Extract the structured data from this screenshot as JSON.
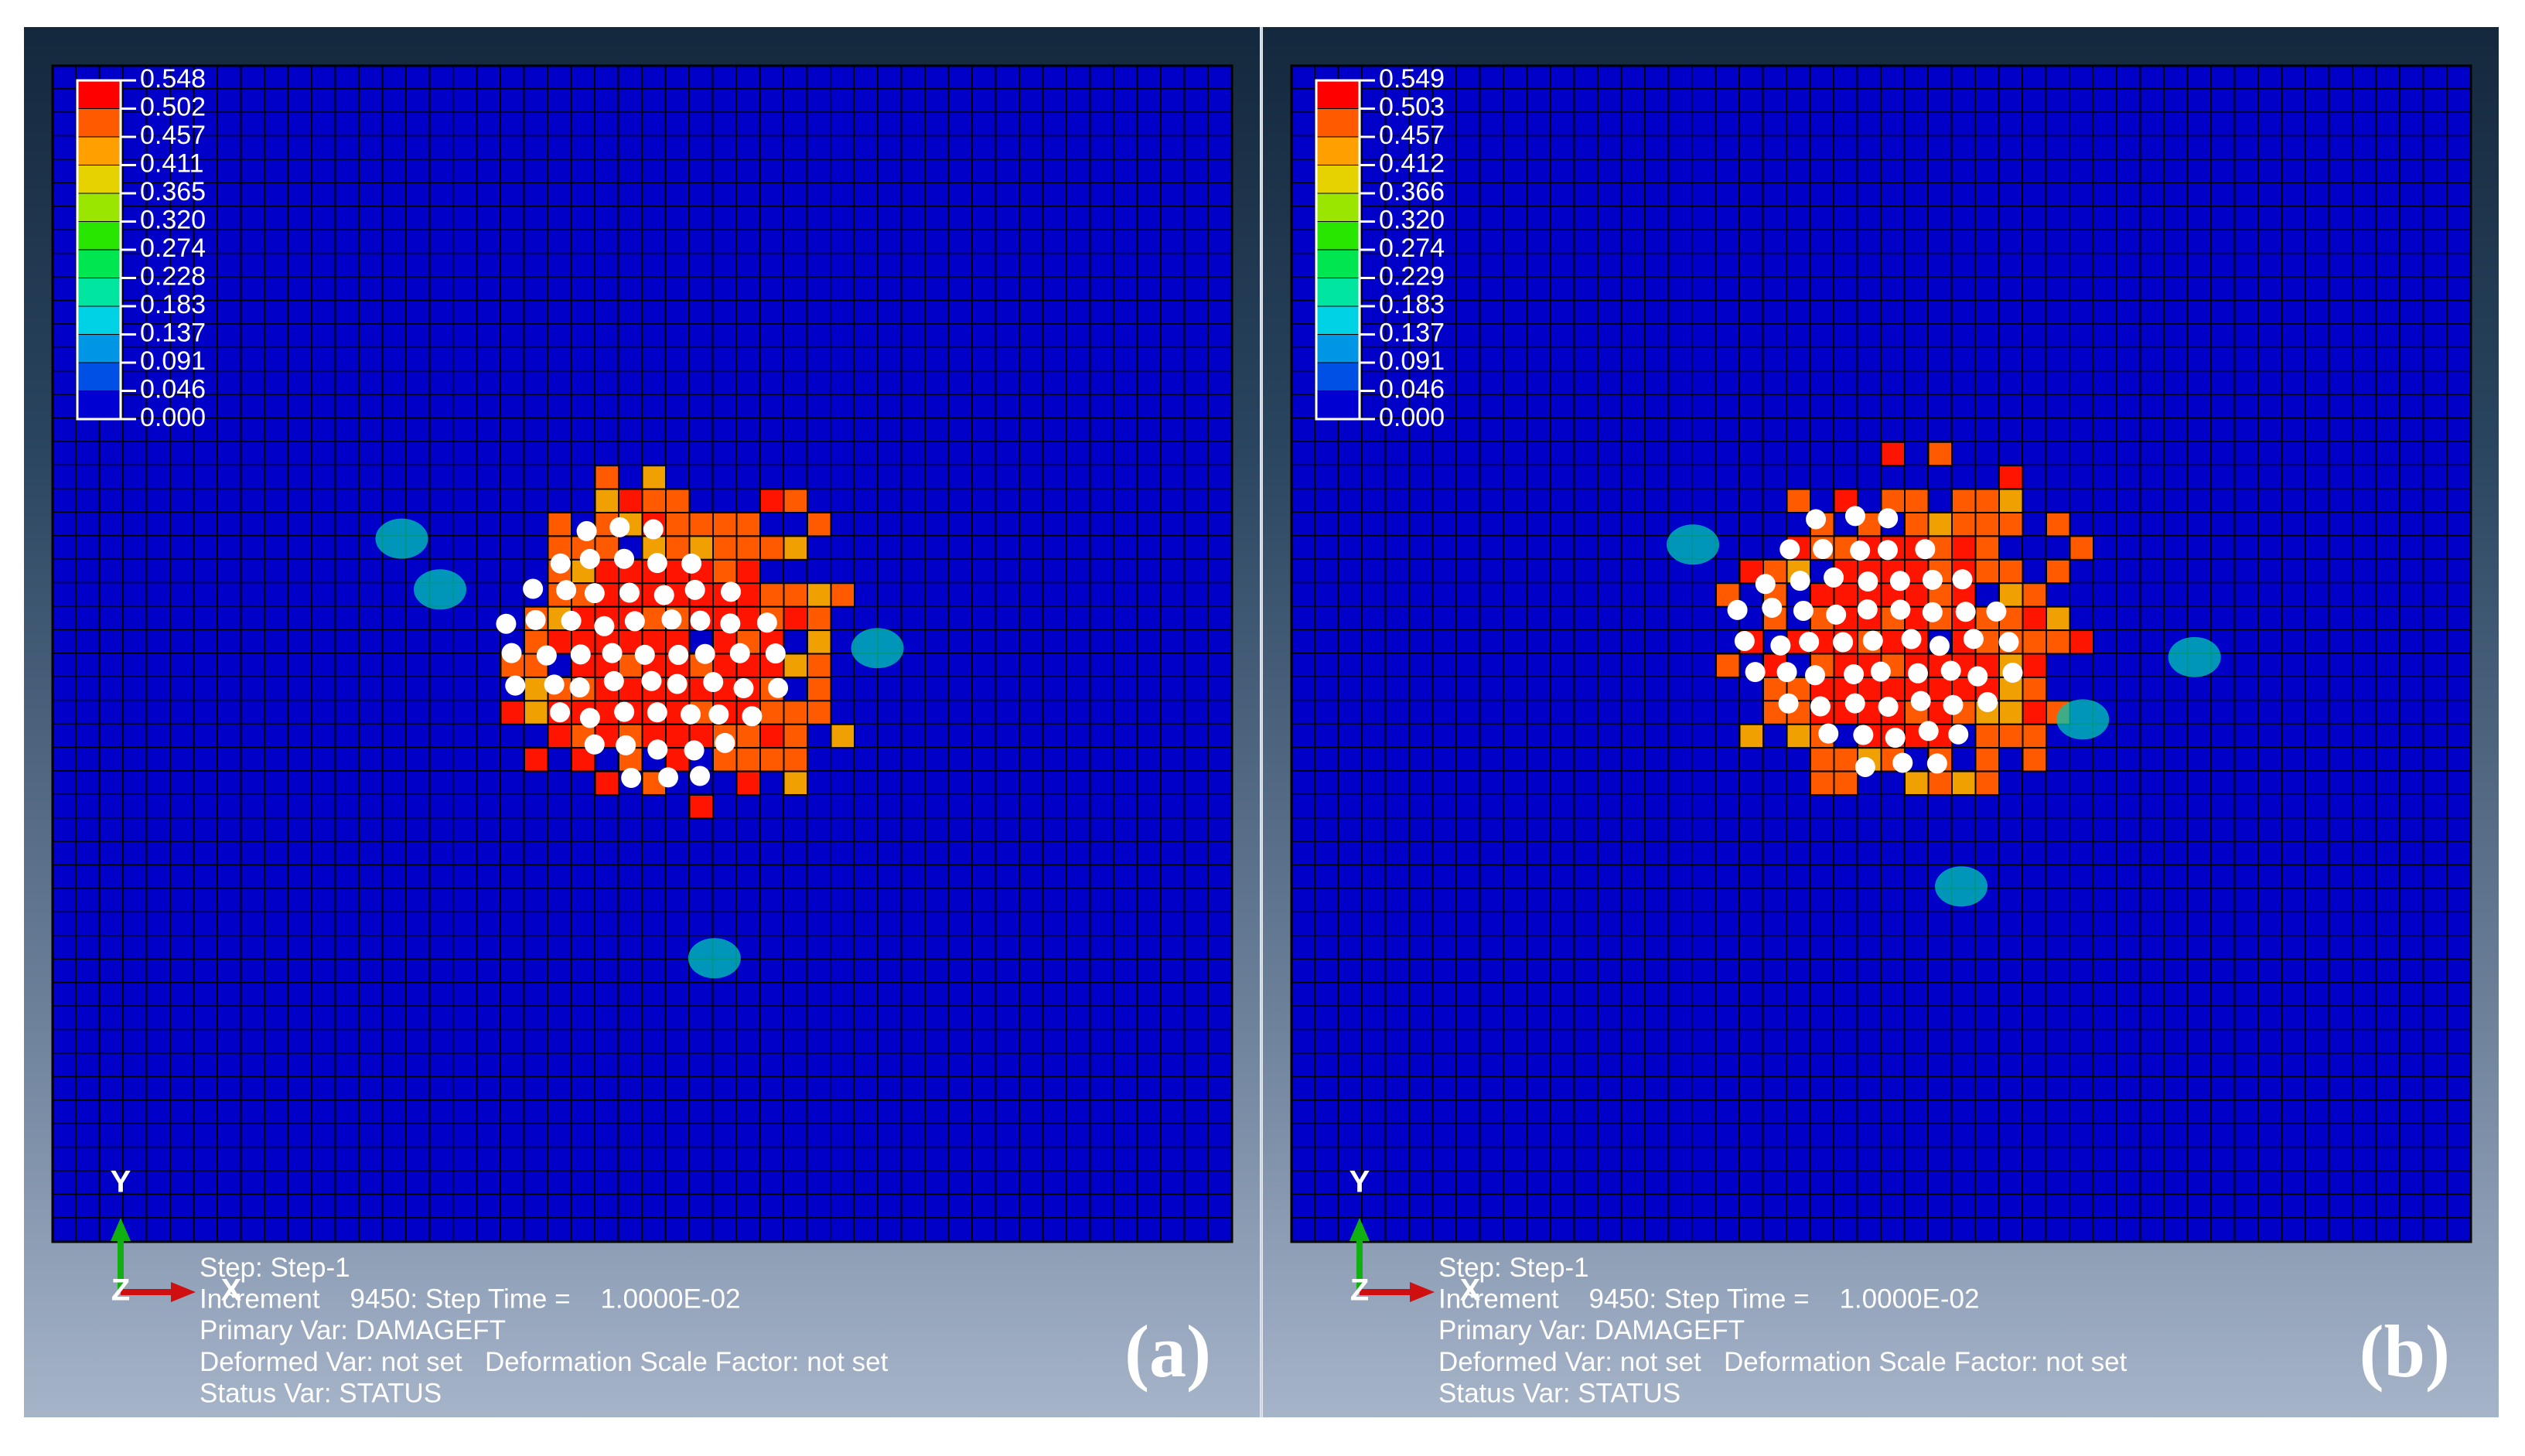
{
  "panels": [
    {
      "label": "(a)",
      "legend": [
        "0.548",
        "0.502",
        "0.457",
        "0.411",
        "0.365",
        "0.320",
        "0.274",
        "0.228",
        "0.183",
        "0.137",
        "0.091",
        "0.046",
        "0.000"
      ],
      "triad": {
        "y": "Y",
        "x": "X",
        "z": "Z"
      },
      "info": [
        "Step: Step-1",
        "Increment    9450: Step Time =    1.0000E-02",
        "Primary Var: DAMAGEFT",
        "Deformed Var: not set   Deformation Scale Factor: not set",
        "Status Var: STATUS"
      ]
    },
    {
      "label": "(b)",
      "legend": [
        "0.549",
        "0.503",
        "0.457",
        "0.412",
        "0.366",
        "0.320",
        "0.274",
        "0.229",
        "0.183",
        "0.137",
        "0.091",
        "0.046",
        "0.000"
      ],
      "triad": {
        "y": "Y",
        "x": "X",
        "z": "Z"
      },
      "info": [
        "Step: Step-1",
        "Increment    9450: Step Time =    1.0000E-02",
        "Primary Var: DAMAGEFT",
        "Deformed Var: not set   Deformation Scale Factor: not set",
        "Status Var: STATUS"
      ]
    }
  ]
}
